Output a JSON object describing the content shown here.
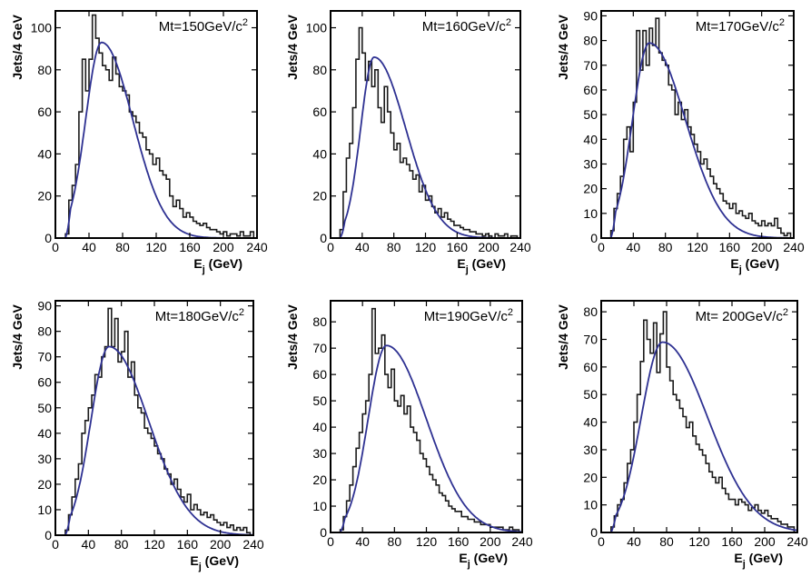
{
  "colors": {
    "histogram": "#1a1a1a",
    "fit": "#2e3192"
  },
  "chart_data": [
    {
      "type": "line",
      "title_main": "Mt=150GeV/c",
      "title_sup": "2",
      "xlabel_main": "E",
      "xlabel_sub": "j",
      "xlabel_unit": " (GeV)",
      "ylabel": "Jets/4 GeV",
      "xlim": [
        0,
        240
      ],
      "ylim": [
        0,
        108
      ],
      "xticks": [
        0,
        40,
        80,
        120,
        160,
        200,
        240
      ],
      "yticks": [
        0,
        20,
        40,
        60,
        80,
        100
      ],
      "fit_peak": [
        55,
        93
      ],
      "fit_spread": [
        19,
        37
      ],
      "histogram": {
        "bin_width": 4,
        "x_start": 12,
        "values": [
          2,
          18,
          25,
          35,
          60,
          85,
          70,
          85,
          106,
          95,
          88,
          82,
          80,
          75,
          86,
          78,
          72,
          70,
          68,
          60,
          58,
          55,
          50,
          48,
          42,
          40,
          35,
          38,
          32,
          30,
          28,
          20,
          15,
          18,
          14,
          10,
          12,
          10,
          8,
          7,
          6,
          7,
          5,
          4,
          4,
          3,
          2,
          3,
          1,
          2,
          2,
          1,
          3,
          1,
          1,
          3,
          0
        ]
      }
    },
    {
      "type": "line",
      "title_main": "Mt=160GeV/c",
      "title_sup": "2",
      "xlabel_main": "E",
      "xlabel_sub": "j",
      "xlabel_unit": " (GeV)",
      "ylabel": "Jets/4 GeV",
      "xlim": [
        0,
        240
      ],
      "ylim": [
        0,
        108
      ],
      "xticks": [
        0,
        40,
        80,
        120,
        160,
        200,
        240
      ],
      "yticks": [
        0,
        20,
        40,
        60,
        80,
        100
      ],
      "fit_peak": [
        55,
        86
      ],
      "fit_spread": [
        17,
        40
      ],
      "histogram": {
        "bin_width": 4,
        "x_start": 12,
        "values": [
          4,
          22,
          38,
          45,
          62,
          85,
          100,
          88,
          75,
          84,
          72,
          80,
          62,
          55,
          72,
          60,
          50,
          42,
          45,
          36,
          38,
          35,
          32,
          28,
          30,
          22,
          25,
          18,
          20,
          15,
          12,
          14,
          10,
          12,
          9,
          8,
          6,
          6,
          5,
          4,
          4,
          3,
          3,
          2,
          2,
          1,
          2,
          1,
          0,
          2,
          1,
          1,
          2,
          0,
          1,
          1,
          0
        ]
      }
    },
    {
      "type": "line",
      "title_main": "Mt=170GeV/c",
      "title_sup": "2",
      "xlabel_main": "E",
      "xlabel_sub": "j",
      "xlabel_unit": " (GeV)",
      "ylabel": "Jets/4 GeV",
      "xlim": [
        0,
        240
      ],
      "ylim": [
        0,
        92
      ],
      "xticks": [
        0,
        40,
        80,
        120,
        160,
        200,
        240
      ],
      "yticks": [
        0,
        10,
        20,
        30,
        40,
        50,
        60,
        70,
        80,
        90
      ],
      "fit_peak": [
        60,
        79
      ],
      "fit_spread": [
        21,
        45
      ],
      "histogram": {
        "bin_width": 4,
        "x_start": 12,
        "values": [
          3,
          12,
          18,
          25,
          40,
          45,
          35,
          55,
          84,
          68,
          84,
          70,
          85,
          78,
          89,
          75,
          72,
          70,
          62,
          60,
          50,
          55,
          48,
          52,
          45,
          42,
          38,
          35,
          30,
          32,
          28,
          25,
          22,
          20,
          18,
          15,
          14,
          12,
          14,
          10,
          11,
          9,
          8,
          10,
          7,
          6,
          5,
          7,
          5,
          6,
          5,
          8,
          4,
          2,
          1,
          2,
          0
        ]
      }
    },
    {
      "type": "line",
      "title_main": "Mt=180GeV/c",
      "title_sup": "2",
      "xlabel_main": "E",
      "xlabel_sub": "j",
      "xlabel_unit": " (GeV)",
      "ylabel": "Jets/4 GeV",
      "xlim": [
        0,
        240
      ],
      "ylim": [
        0,
        92
      ],
      "xticks": [
        0,
        40,
        80,
        120,
        160,
        200,
        240
      ],
      "yticks": [
        0,
        10,
        20,
        30,
        40,
        50,
        60,
        70,
        80,
        90
      ],
      "fit_peak": [
        65,
        74
      ],
      "fit_spread": [
        22,
        48
      ],
      "histogram": {
        "bin_width": 4,
        "x_start": 12,
        "values": [
          2,
          8,
          15,
          22,
          28,
          40,
          45,
          50,
          55,
          63,
          62,
          70,
          74,
          89,
          74,
          85,
          68,
          72,
          80,
          62,
          68,
          55,
          50,
          48,
          42,
          40,
          38,
          35,
          32,
          30,
          26,
          24,
          20,
          22,
          18,
          15,
          13,
          16,
          10,
          12,
          10,
          8,
          9,
          7,
          8,
          6,
          5,
          4,
          5,
          3,
          4,
          2,
          3,
          2,
          3,
          1,
          0
        ]
      }
    },
    {
      "type": "line",
      "title_main": "Mt=190GeV/c",
      "title_sup": "2",
      "xlabel_main": "E",
      "xlabel_sub": "j",
      "xlabel_unit": " (GeV)",
      "ylabel": "Jets/4 GeV",
      "xlim": [
        0,
        240
      ],
      "ylim": [
        0,
        88
      ],
      "xticks": [
        0,
        40,
        80,
        120,
        160,
        200,
        240
      ],
      "yticks": [
        0,
        10,
        20,
        30,
        40,
        50,
        60,
        70,
        80
      ],
      "fit_peak": [
        70,
        71
      ],
      "fit_spread": [
        23,
        50
      ],
      "histogram": {
        "bin_width": 4,
        "x_start": 12,
        "values": [
          1,
          6,
          12,
          18,
          25,
          32,
          38,
          45,
          50,
          60,
          85,
          68,
          70,
          75,
          60,
          55,
          62,
          50,
          48,
          52,
          45,
          48,
          40,
          38,
          35,
          30,
          28,
          25,
          22,
          20,
          18,
          15,
          14,
          12,
          10,
          9,
          8,
          8,
          6,
          6,
          5,
          5,
          4,
          4,
          3,
          3,
          3,
          2,
          2,
          2,
          2,
          1,
          1,
          2,
          1,
          1,
          0
        ]
      }
    },
    {
      "type": "line",
      "title_main": "Mt= 200GeV/c",
      "title_sup": "2",
      "xlabel_main": "E",
      "xlabel_sub": "j",
      "xlabel_unit": " (GeV)",
      "ylabel": "Jets/4 GeV",
      "xlim": [
        0,
        240
      ],
      "ylim": [
        0,
        84
      ],
      "xticks": [
        0,
        40,
        80,
        120,
        160,
        200,
        240
      ],
      "yticks": [
        0,
        10,
        20,
        30,
        40,
        50,
        60,
        70,
        80
      ],
      "fit_peak": [
        75,
        69
      ],
      "fit_spread": [
        26,
        55
      ],
      "histogram": {
        "bin_width": 4,
        "x_start": 12,
        "values": [
          2,
          6,
          10,
          12,
          18,
          25,
          30,
          40,
          50,
          62,
          77,
          70,
          65,
          76,
          58,
          72,
          80,
          60,
          55,
          50,
          48,
          45,
          42,
          38,
          40,
          35,
          32,
          30,
          28,
          25,
          22,
          20,
          18,
          20,
          16,
          14,
          12,
          12,
          10,
          12,
          11,
          10,
          8,
          9,
          10,
          8,
          7,
          8,
          6,
          5,
          5,
          4,
          3,
          3,
          2,
          2,
          0
        ]
      }
    }
  ]
}
